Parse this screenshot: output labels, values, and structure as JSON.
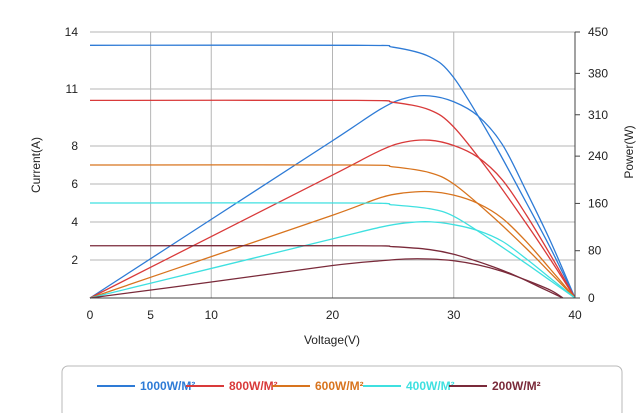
{
  "chart_data": {
    "type": "line",
    "xlabel": "Voltage(V)",
    "ylabel": "Current(A)",
    "y2label": "Power(W)",
    "xlim": [
      0,
      40
    ],
    "ylim": [
      0,
      14
    ],
    "y2lim": [
      0,
      450
    ],
    "x_ticks": [
      "0",
      "5",
      "10",
      "20",
      "30",
      "40"
    ],
    "y_ticks": [
      "2",
      "4",
      "6",
      "8",
      "11",
      "14"
    ],
    "y2_ticks": [
      "0",
      "80",
      "160",
      "240",
      "310",
      "380",
      "450"
    ],
    "grid": true,
    "legend_position": "bottom",
    "series": [
      {
        "name": "1000W/M²",
        "color": "#2e7bd6",
        "current": [
          [
            0,
            13.3
          ],
          [
            22,
            13.3
          ],
          [
            25,
            13.2
          ],
          [
            28,
            12.7
          ],
          [
            30,
            11.6
          ],
          [
            33,
            8.5
          ],
          [
            36,
            5.0
          ],
          [
            38,
            2.6
          ],
          [
            40,
            0
          ]
        ],
        "power": [
          [
            0,
            0
          ],
          [
            10,
            133
          ],
          [
            20,
            266
          ],
          [
            24,
            320
          ],
          [
            26,
            338
          ],
          [
            28,
            342
          ],
          [
            30,
            332
          ],
          [
            32,
            308
          ],
          [
            34,
            260
          ],
          [
            36,
            180
          ],
          [
            38,
            95
          ],
          [
            40,
            0
          ]
        ]
      },
      {
        "name": "800W/M²",
        "color": "#d93a3a",
        "current": [
          [
            0,
            10.4
          ],
          [
            22,
            10.4
          ],
          [
            25,
            10.3
          ],
          [
            28,
            9.9
          ],
          [
            30,
            9.0
          ],
          [
            33,
            6.6
          ],
          [
            36,
            3.9
          ],
          [
            38,
            2.0
          ],
          [
            40,
            0
          ]
        ],
        "power": [
          [
            0,
            0
          ],
          [
            10,
            104
          ],
          [
            20,
            208
          ],
          [
            24,
            250
          ],
          [
            26,
            264
          ],
          [
            28,
            267
          ],
          [
            30,
            258
          ],
          [
            32,
            238
          ],
          [
            34,
            200
          ],
          [
            36,
            140
          ],
          [
            38,
            72
          ],
          [
            40,
            0
          ]
        ]
      },
      {
        "name": "600W/M²",
        "color": "#d8741e",
        "current": [
          [
            0,
            7.0
          ],
          [
            22,
            7.0
          ],
          [
            25,
            6.9
          ],
          [
            28,
            6.6
          ],
          [
            30,
            6.0
          ],
          [
            33,
            4.4
          ],
          [
            36,
            2.6
          ],
          [
            38,
            1.3
          ],
          [
            40,
            0
          ]
        ],
        "power": [
          [
            0,
            0
          ],
          [
            10,
            70
          ],
          [
            20,
            140
          ],
          [
            24,
            170
          ],
          [
            26,
            178
          ],
          [
            28,
            180
          ],
          [
            30,
            174
          ],
          [
            32,
            160
          ],
          [
            34,
            135
          ],
          [
            36,
            95
          ],
          [
            38,
            48
          ],
          [
            40,
            0
          ]
        ]
      },
      {
        "name": "400W/M²",
        "color": "#3fe0e0",
        "current": [
          [
            0,
            5.0
          ],
          [
            22,
            5.0
          ],
          [
            25,
            4.9
          ],
          [
            28,
            4.7
          ],
          [
            30,
            4.3
          ],
          [
            33,
            3.1
          ],
          [
            36,
            1.8
          ],
          [
            38,
            0.9
          ],
          [
            40,
            0
          ]
        ],
        "power": [
          [
            0,
            0
          ],
          [
            10,
            50
          ],
          [
            20,
            100
          ],
          [
            24,
            120
          ],
          [
            26,
            127
          ],
          [
            28,
            129
          ],
          [
            30,
            124
          ],
          [
            32,
            114
          ],
          [
            34,
            96
          ],
          [
            36,
            66
          ],
          [
            38,
            33
          ],
          [
            40,
            0
          ]
        ]
      },
      {
        "name": "200W/M²",
        "color": "#7a2a3a",
        "current": [
          [
            0,
            2.75
          ],
          [
            22,
            2.75
          ],
          [
            25,
            2.7
          ],
          [
            28,
            2.55
          ],
          [
            30,
            2.3
          ],
          [
            33,
            1.7
          ],
          [
            35,
            1.2
          ],
          [
            37,
            0.6
          ],
          [
            39,
            0
          ]
        ],
        "power": [
          [
            0,
            0
          ],
          [
            10,
            27
          ],
          [
            20,
            55
          ],
          [
            24,
            63
          ],
          [
            26,
            66
          ],
          [
            28,
            66
          ],
          [
            30,
            63
          ],
          [
            32,
            56
          ],
          [
            34,
            45
          ],
          [
            36,
            30
          ],
          [
            38,
            13
          ],
          [
            39,
            0
          ]
        ]
      }
    ]
  }
}
